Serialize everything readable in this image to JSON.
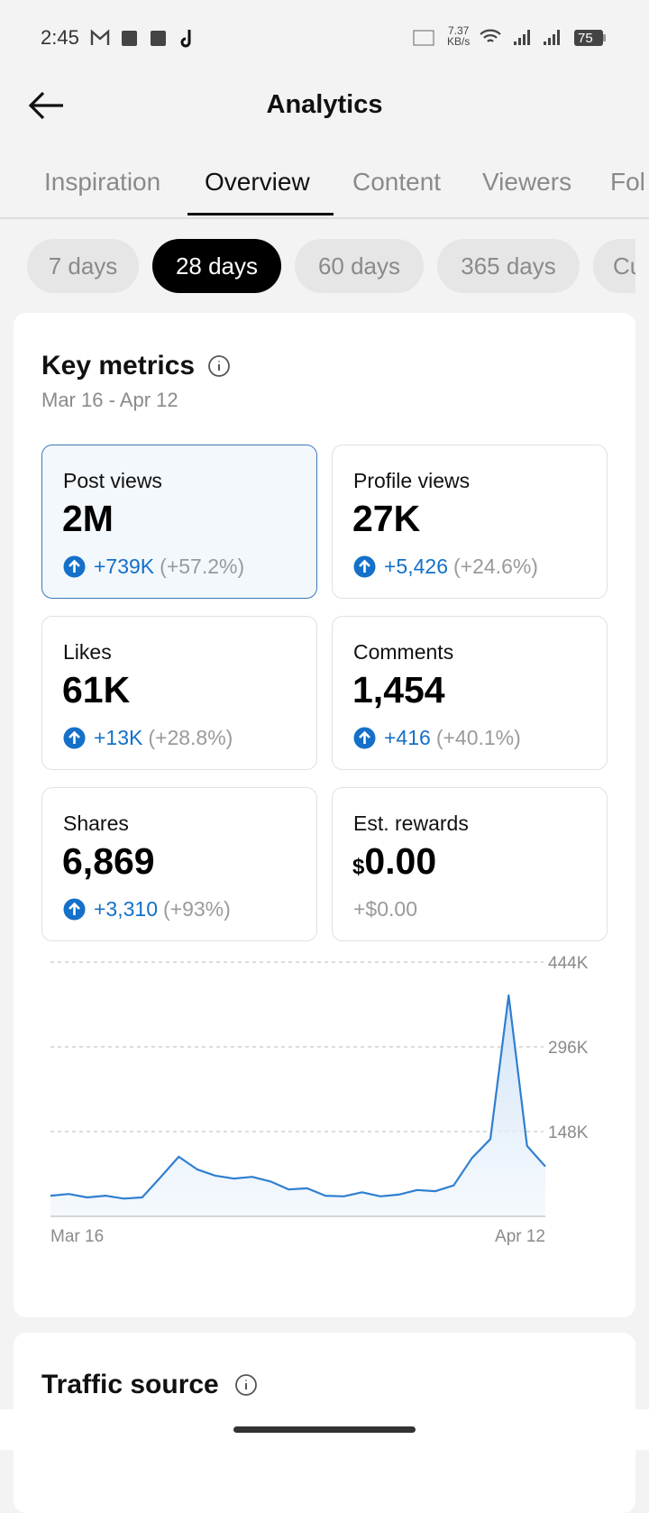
{
  "status_bar": {
    "time": "2:45",
    "speed": "7.37",
    "speed_unit": "KB/s",
    "battery": "75"
  },
  "header": {
    "title": "Analytics"
  },
  "tabs": [
    {
      "label": "Inspiration"
    },
    {
      "label": "Overview",
      "active": true
    },
    {
      "label": "Content"
    },
    {
      "label": "Viewers"
    },
    {
      "label": "Fol"
    }
  ],
  "ranges": [
    {
      "label": "7 days"
    },
    {
      "label": "28 days",
      "active": true
    },
    {
      "label": "60 days"
    },
    {
      "label": "365 days"
    },
    {
      "label": "Cu"
    }
  ],
  "key_metrics": {
    "title": "Key metrics",
    "date_range": "Mar 16 - Apr 12",
    "metrics": [
      {
        "label": "Post views",
        "value": "2M",
        "change": "+739K",
        "percent": "(+57.2%)",
        "selected": true
      },
      {
        "label": "Profile views",
        "value": "27K",
        "change": "+5,426",
        "percent": "(+24.6%)"
      },
      {
        "label": "Likes",
        "value": "61K",
        "change": "+13K",
        "percent": "(+28.8%)"
      },
      {
        "label": "Comments",
        "value": "1,454",
        "change": "+416",
        "percent": "(+40.1%)"
      },
      {
        "label": "Shares",
        "value": "6,869",
        "change": "+3,310",
        "percent": "(+93%)"
      },
      {
        "label": "Est. rewards",
        "currency": "$",
        "value": "0.00",
        "change": "+$0.00"
      }
    ]
  },
  "chart_data": {
    "type": "line",
    "color": "#2f7fd0",
    "categories": [
      "Mar 16",
      null,
      null,
      null,
      null,
      null,
      null,
      null,
      null,
      null,
      null,
      null,
      null,
      null,
      null,
      null,
      null,
      null,
      null,
      null,
      null,
      null,
      null,
      null,
      null,
      null,
      null,
      "Apr 12"
    ],
    "values": [
      36000,
      39000,
      33000,
      36000,
      31000,
      33000,
      68000,
      104000,
      82000,
      71000,
      66000,
      69000,
      61000,
      47000,
      49000,
      36000,
      35000,
      42000,
      35000,
      38000,
      46000,
      44000,
      54000,
      102000,
      135000,
      386000,
      123000,
      87000
    ],
    "ylim": [
      0,
      444000
    ],
    "yticks": [
      {
        "value": 148000,
        "label": "148K"
      },
      {
        "value": 296000,
        "label": "296K"
      },
      {
        "value": 444000,
        "label": "444K"
      }
    ],
    "grid": true
  },
  "traffic_source": {
    "title": "Traffic source"
  }
}
